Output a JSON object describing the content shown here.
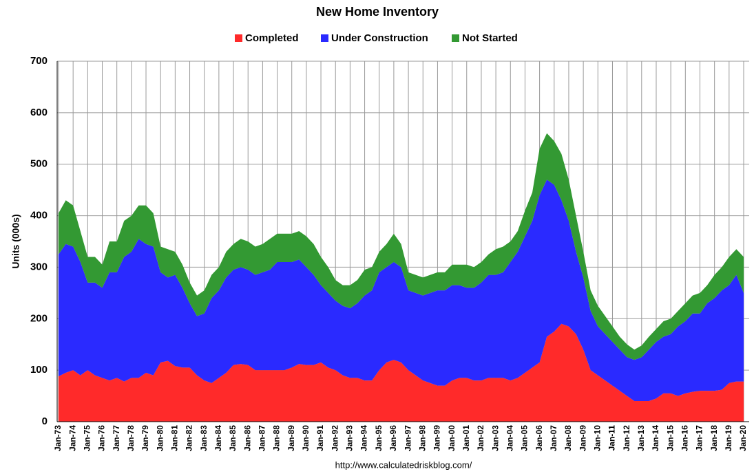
{
  "chart_data": {
    "type": "stacked_area",
    "title": "New Home Inventory",
    "y_label": "Units (000s)",
    "source": "http://www.calculatedriskblog.com/",
    "categories": [
      "Jan-73",
      null,
      "Jan-74",
      null,
      "Jan-75",
      null,
      "Jan-76",
      null,
      "Jan-77",
      null,
      "Jan-78",
      null,
      "Jan-79",
      null,
      "Jan-80",
      null,
      "Jan-81",
      null,
      "Jan-82",
      null,
      "Jan-83",
      null,
      "Jan-84",
      null,
      "Jan-85",
      null,
      "Jan-86",
      null,
      "Jan-87",
      null,
      "Jan-88",
      null,
      "Jan-89",
      null,
      "Jan-90",
      null,
      "Jan-91",
      null,
      "Jan-92",
      null,
      "Jan-93",
      null,
      "Jan-94",
      null,
      "Jan-95",
      null,
      "Jan-96",
      null,
      "Jan-97",
      null,
      "Jan-98",
      null,
      "Jan-99",
      null,
      "Jan-00",
      null,
      "Jan-01",
      null,
      "Jan-02",
      null,
      "Jan-03",
      null,
      "Jan-04",
      null,
      "Jan-05",
      null,
      "Jan-06",
      null,
      "Jan-07",
      null,
      "Jan-08",
      null,
      "Jan-09",
      null,
      "Jan-10",
      null,
      "Jan-11",
      null,
      "Jan-12",
      null,
      "Jan-13",
      null,
      "Jan-14",
      null,
      "Jan-15",
      null,
      "Jan-16",
      null,
      "Jan-17",
      null,
      "Jan-18",
      null,
      "Jan-19",
      null,
      "Jan-20"
    ],
    "series": [
      {
        "name": "Completed",
        "color": "#ff2a2a",
        "values": [
          88,
          95,
          100,
          90,
          100,
          90,
          85,
          80,
          85,
          78,
          85,
          85,
          95,
          90,
          115,
          118,
          108,
          105,
          105,
          90,
          80,
          75,
          85,
          95,
          110,
          112,
          110,
          100,
          100,
          100,
          100,
          100,
          105,
          112,
          110,
          110,
          115,
          105,
          100,
          90,
          85,
          85,
          80,
          80,
          100,
          115,
          120,
          115,
          100,
          90,
          80,
          75,
          70,
          70,
          80,
          85,
          85,
          80,
          80,
          85,
          85,
          85,
          80,
          85,
          95,
          105,
          115,
          165,
          175,
          190,
          185,
          170,
          140,
          100,
          90,
          80,
          70,
          60,
          50,
          40,
          40,
          40,
          45,
          55,
          55,
          50,
          55,
          58,
          60,
          60,
          60,
          62,
          75,
          78,
          78
        ]
      },
      {
        "name": "Under Construction",
        "color": "#2a2aff",
        "values": [
          237,
          250,
          240,
          220,
          170,
          180,
          175,
          210,
          205,
          242,
          245,
          270,
          250,
          250,
          175,
          162,
          177,
          155,
          125,
          115,
          130,
          165,
          170,
          185,
          185,
          188,
          185,
          185,
          190,
          195,
          210,
          210,
          205,
          203,
          190,
          175,
          150,
          145,
          135,
          135,
          135,
          145,
          165,
          175,
          190,
          185,
          190,
          185,
          155,
          160,
          165,
          175,
          185,
          185,
          185,
          180,
          175,
          180,
          190,
          200,
          200,
          205,
          230,
          245,
          265,
          285,
          325,
          305,
          285,
          240,
          205,
          160,
          140,
          115,
          95,
          90,
          85,
          80,
          75,
          80,
          85,
          100,
          110,
          110,
          115,
          135,
          140,
          152,
          150,
          170,
          180,
          193,
          190,
          207,
          172
        ]
      },
      {
        "name": "Not Started",
        "color": "#339933",
        "values": [
          80,
          85,
          80,
          60,
          50,
          50,
          45,
          60,
          60,
          70,
          70,
          65,
          75,
          65,
          50,
          55,
          45,
          45,
          40,
          40,
          45,
          45,
          45,
          50,
          50,
          55,
          55,
          55,
          55,
          60,
          55,
          55,
          55,
          55,
          60,
          60,
          55,
          50,
          40,
          40,
          45,
          45,
          50,
          45,
          40,
          45,
          55,
          45,
          35,
          35,
          35,
          35,
          35,
          35,
          40,
          40,
          45,
          40,
          40,
          40,
          50,
          50,
          40,
          40,
          50,
          55,
          90,
          90,
          85,
          90,
          80,
          70,
          50,
          40,
          40,
          35,
          30,
          25,
          25,
          20,
          23,
          25,
          25,
          30,
          30,
          30,
          35,
          35,
          40,
          35,
          45,
          45,
          55,
          50,
          70
        ]
      }
    ],
    "ylim": [
      0,
      700
    ],
    "yticks": [
      0,
      100,
      200,
      300,
      400,
      500,
      600,
      700
    ],
    "grid": true,
    "legend": "top"
  }
}
